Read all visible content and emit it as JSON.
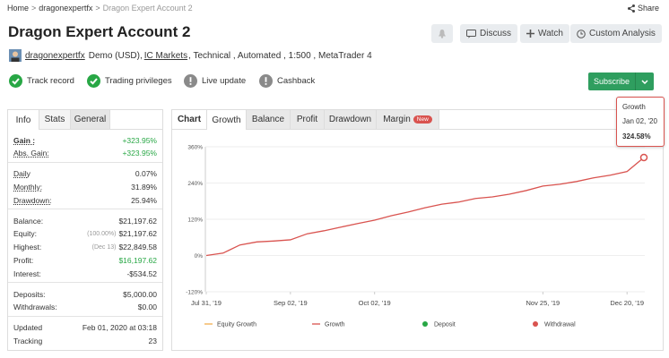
{
  "breadcrumb": {
    "items": [
      "Home",
      "dragonexpertfx",
      "Dragon Expert Account 2"
    ],
    "separator": ">"
  },
  "share": "Share",
  "header": {
    "title": "Dragon Expert Account 2",
    "buttons": [
      "Discuss",
      "Watch",
      "Custom Analysis"
    ]
  },
  "info": {
    "user": "dragonexpertfx",
    "account": "Demo (USD),",
    "broker": "IC Markets",
    "details": ", Technical , Automated , 1:500 , MetaTrader 4"
  },
  "badges": [
    {
      "label": "Track record",
      "status": "ok"
    },
    {
      "label": "Trading privileges",
      "status": "ok"
    },
    {
      "label": "Live update",
      "status": "warn"
    },
    {
      "label": "Cashback",
      "status": "warn"
    }
  ],
  "subscribe": "Subscribe",
  "tooltip": {
    "title": "Growth",
    "date": "Jan 02, '20",
    "value": "324.58%"
  },
  "stats": {
    "tabs": [
      "Info",
      "Stats",
      "General"
    ],
    "groups": [
      [
        {
          "label": "Gain :",
          "value": "+323.95%",
          "color": "#28a745",
          "bold": true
        },
        {
          "label": "Abs. Gain:",
          "value": "+323.95%",
          "color": "#28a745"
        }
      ],
      [
        {
          "label": "Daily",
          "value": "0.07%"
        },
        {
          "label": "Monthly:",
          "value": "31.89%"
        },
        {
          "label": "Drawdown:",
          "value": "25.94%"
        }
      ],
      [
        {
          "label": "Balance:",
          "value": "$21,197.62"
        },
        {
          "label": "Equity:",
          "note": "(100.00%)",
          "value": "$21,197.62"
        },
        {
          "label": "Highest:",
          "note": "(Dec 13)",
          "value": "$22,849.58"
        },
        {
          "label": "Profit:",
          "value": "$16,197.62",
          "color": "#28a745"
        },
        {
          "label": "Interest:",
          "value": "-$534.52"
        }
      ],
      [
        {
          "label": "Deposits:",
          "value": "$5,000.00"
        },
        {
          "label": "Withdrawals:",
          "value": "$0.00"
        }
      ],
      [
        {
          "label": "Updated",
          "value": "Feb 01, 2020 at 03:18"
        },
        {
          "label": "Tracking",
          "value": "23"
        }
      ]
    ]
  },
  "chart_tabs": {
    "items": [
      "Chart",
      "Growth",
      "Balance",
      "Profit",
      "Drawdown",
      "Margin"
    ],
    "badge": "New"
  },
  "chart_data": {
    "type": "line",
    "categories": [
      "Jul 31, '19",
      null,
      null,
      null,
      null,
      "Sep 02, '19",
      null,
      null,
      null,
      null,
      "Oct 02, '19",
      null,
      null,
      null,
      null,
      null,
      null,
      null,
      null,
      null,
      "Nov 25, '19",
      null,
      null,
      null,
      null,
      "Dec 20, '19",
      null
    ],
    "series": [
      {
        "name": "Growth",
        "color": "#d9534f",
        "values": [
          0,
          8,
          35,
          45,
          48,
          52,
          72,
          82,
          94,
          106,
          117,
          132,
          144,
          158,
          170,
          177,
          189,
          194,
          203,
          215,
          230,
          236,
          245,
          257,
          266,
          278,
          324.58
        ]
      }
    ],
    "ylim": [
      -120,
      360
    ],
    "yticks": [
      {
        "value": -120,
        "label": "-120%"
      },
      {
        "value": 0,
        "label": "0%"
      },
      {
        "value": 120,
        "label": "120%"
      },
      {
        "value": 240,
        "label": "240%"
      },
      {
        "value": 360,
        "label": "360%"
      }
    ],
    "grid": true,
    "legend": [
      {
        "name": "Equity Growth",
        "color": "#f0ad4e",
        "marker": "line"
      },
      {
        "name": "Growth",
        "color": "#d9534f",
        "marker": "line"
      },
      {
        "name": "Deposit",
        "color": "#28a745",
        "marker": "dot"
      },
      {
        "name": "Withdrawal",
        "color": "#d9534f",
        "marker": "dot"
      }
    ]
  }
}
